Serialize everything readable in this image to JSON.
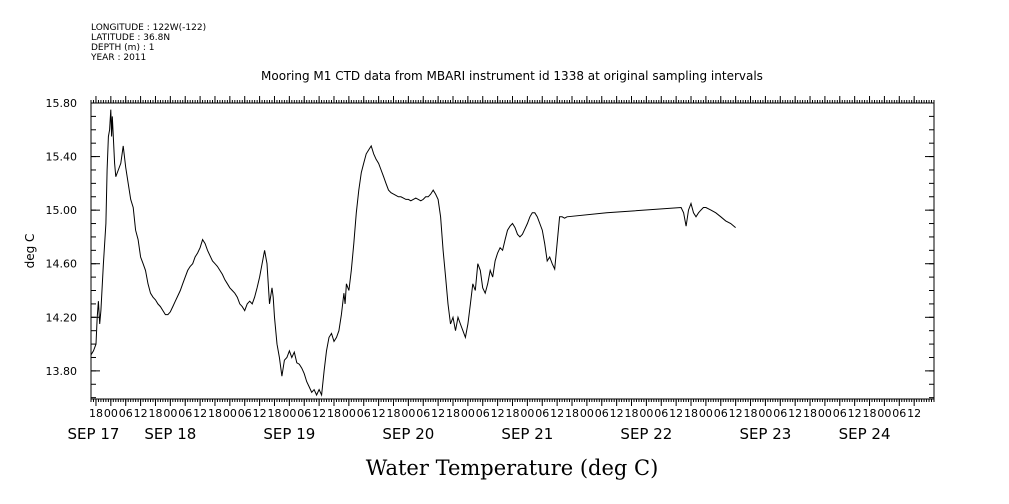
{
  "header_info": [
    "LONGITUDE : 122W(-122)",
    "LATITUDE : 36.8N",
    "DEPTH (m) : 1",
    "YEAR : 2011"
  ],
  "chart_data": {
    "type": "line",
    "title": "Mooring M1 CTD data from MBARI instrument id 1338 at original sampling intervals",
    "xlabel": "Water Temperature (deg C)",
    "ylabel": "deg C",
    "ylim": [
      13.59,
      15.8
    ],
    "y_ticks": [
      "13.80",
      "14.20",
      "14.60",
      "15.00",
      "15.40",
      "15.80"
    ],
    "y_tick_values": [
      13.8,
      14.2,
      14.6,
      15.0,
      15.4,
      15.8
    ],
    "x_range_hours": [
      -8,
      332
    ],
    "x_hour_ticks": [
      {
        "label": "18",
        "hour": -6
      },
      {
        "label": "00",
        "hour": 0
      },
      {
        "label": "06",
        "hour": 6
      },
      {
        "label": "12",
        "hour": 12
      },
      {
        "label": "18",
        "hour": 18
      },
      {
        "label": "00",
        "hour": 24
      },
      {
        "label": "06",
        "hour": 30
      },
      {
        "label": "12",
        "hour": 36
      },
      {
        "label": "18",
        "hour": 42
      },
      {
        "label": "00",
        "hour": 48
      },
      {
        "label": "06",
        "hour": 54
      },
      {
        "label": "12",
        "hour": 60
      },
      {
        "label": "18",
        "hour": 66
      },
      {
        "label": "00",
        "hour": 72
      },
      {
        "label": "06",
        "hour": 78
      },
      {
        "label": "12",
        "hour": 84
      },
      {
        "label": "18",
        "hour": 90
      },
      {
        "label": "00",
        "hour": 96
      },
      {
        "label": "06",
        "hour": 102
      },
      {
        "label": "12",
        "hour": 108
      },
      {
        "label": "18",
        "hour": 114
      },
      {
        "label": "00",
        "hour": 120
      },
      {
        "label": "06",
        "hour": 126
      },
      {
        "label": "12",
        "hour": 132
      },
      {
        "label": "18",
        "hour": 138
      },
      {
        "label": "00",
        "hour": 144
      },
      {
        "label": "06",
        "hour": 150
      },
      {
        "label": "12",
        "hour": 156
      },
      {
        "label": "18",
        "hour": 162
      },
      {
        "label": "00",
        "hour": 168
      },
      {
        "label": "06",
        "hour": 174
      },
      {
        "label": "12",
        "hour": 180
      },
      {
        "label": "18",
        "hour": 186
      },
      {
        "label": "00",
        "hour": 192
      },
      {
        "label": "06",
        "hour": 198
      },
      {
        "label": "12",
        "hour": 204
      },
      {
        "label": "18",
        "hour": 210
      },
      {
        "label": "00",
        "hour": 216
      },
      {
        "label": "06",
        "hour": 222
      },
      {
        "label": "12",
        "hour": 228
      },
      {
        "label": "18",
        "hour": 234
      },
      {
        "label": "00",
        "hour": 240
      },
      {
        "label": "06",
        "hour": 246
      },
      {
        "label": "12",
        "hour": 252
      },
      {
        "label": "18",
        "hour": 258
      },
      {
        "label": "00",
        "hour": 264
      },
      {
        "label": "06",
        "hour": 270
      },
      {
        "label": "12",
        "hour": 276
      },
      {
        "label": "18",
        "hour": 282
      },
      {
        "label": "00",
        "hour": 288
      },
      {
        "label": "06",
        "hour": 294
      },
      {
        "label": "12",
        "hour": 300
      },
      {
        "label": "18",
        "hour": 306
      },
      {
        "label": "00",
        "hour": 312
      },
      {
        "label": "06",
        "hour": 318
      },
      {
        "label": "12",
        "hour": 324
      }
    ],
    "x_date_labels": [
      {
        "label": "SEP 17",
        "hour": -7
      },
      {
        "label": "SEP 18",
        "hour": 24
      },
      {
        "label": "SEP 19",
        "hour": 72
      },
      {
        "label": "SEP 20",
        "hour": 120
      },
      {
        "label": "SEP 21",
        "hour": 168
      },
      {
        "label": "SEP 22",
        "hour": 216
      },
      {
        "label": "SEP 23",
        "hour": 264
      },
      {
        "label": "SEP 24",
        "hour": 304
      }
    ],
    "series": [
      {
        "color": "#000000",
        "points": [
          [
            -8,
            13.92
          ],
          [
            -7,
            13.95
          ],
          [
            -6,
            14.0
          ],
          [
            -5.5,
            14.2
          ],
          [
            -5,
            14.32
          ],
          [
            -4.5,
            14.15
          ],
          [
            -4,
            14.25
          ],
          [
            -3,
            14.6
          ],
          [
            -2,
            14.9
          ],
          [
            -1.5,
            15.3
          ],
          [
            -1,
            15.55
          ],
          [
            -0.5,
            15.6
          ],
          [
            0,
            15.75
          ],
          [
            0.3,
            15.55
          ],
          [
            0.6,
            15.7
          ],
          [
            1,
            15.55
          ],
          [
            1.5,
            15.35
          ],
          [
            2,
            15.25
          ],
          [
            3,
            15.3
          ],
          [
            4,
            15.35
          ],
          [
            5,
            15.48
          ],
          [
            6,
            15.32
          ],
          [
            7,
            15.2
          ],
          [
            8,
            15.08
          ],
          [
            9,
            15.02
          ],
          [
            10,
            14.85
          ],
          [
            11,
            14.78
          ],
          [
            12,
            14.65
          ],
          [
            13,
            14.6
          ],
          [
            14,
            14.55
          ],
          [
            15,
            14.45
          ],
          [
            16,
            14.38
          ],
          [
            17,
            14.35
          ],
          [
            18,
            14.33
          ],
          [
            19,
            14.3
          ],
          [
            20,
            14.28
          ],
          [
            21,
            14.25
          ],
          [
            22,
            14.22
          ],
          [
            23,
            14.22
          ],
          [
            24,
            14.24
          ],
          [
            25,
            14.28
          ],
          [
            26,
            14.32
          ],
          [
            27,
            14.36
          ],
          [
            28,
            14.4
          ],
          [
            29,
            14.45
          ],
          [
            30,
            14.5
          ],
          [
            31,
            14.55
          ],
          [
            32,
            14.58
          ],
          [
            33,
            14.6
          ],
          [
            34,
            14.65
          ],
          [
            35,
            14.68
          ],
          [
            36,
            14.72
          ],
          [
            37,
            14.78
          ],
          [
            38,
            14.75
          ],
          [
            39,
            14.7
          ],
          [
            40,
            14.66
          ],
          [
            41,
            14.62
          ],
          [
            42,
            14.6
          ],
          [
            43,
            14.58
          ],
          [
            44,
            14.55
          ],
          [
            45,
            14.52
          ],
          [
            46,
            14.48
          ],
          [
            47,
            14.45
          ],
          [
            48,
            14.42
          ],
          [
            49,
            14.4
          ],
          [
            50,
            14.38
          ],
          [
            51,
            14.35
          ],
          [
            52,
            14.3
          ],
          [
            53,
            14.28
          ],
          [
            54,
            14.25
          ],
          [
            55,
            14.3
          ],
          [
            56,
            14.32
          ],
          [
            57,
            14.3
          ],
          [
            58,
            14.35
          ],
          [
            59,
            14.42
          ],
          [
            60,
            14.5
          ],
          [
            61,
            14.6
          ],
          [
            62,
            14.7
          ],
          [
            63,
            14.6
          ],
          [
            64,
            14.3
          ],
          [
            65,
            14.42
          ],
          [
            65.5,
            14.35
          ],
          [
            66,
            14.2
          ],
          [
            67,
            14.0
          ],
          [
            68,
            13.9
          ],
          [
            69,
            13.76
          ],
          [
            70,
            13.88
          ],
          [
            71,
            13.9
          ],
          [
            72,
            13.95
          ],
          [
            73,
            13.9
          ],
          [
            74,
            13.94
          ],
          [
            75,
            13.86
          ],
          [
            76,
            13.85
          ],
          [
            77,
            13.82
          ],
          [
            78,
            13.78
          ],
          [
            79,
            13.72
          ],
          [
            80,
            13.68
          ],
          [
            81,
            13.64
          ],
          [
            82,
            13.66
          ],
          [
            83,
            13.62
          ],
          [
            84,
            13.66
          ],
          [
            85,
            13.62
          ],
          [
            86,
            13.8
          ],
          [
            87,
            13.95
          ],
          [
            88,
            14.05
          ],
          [
            89,
            14.08
          ],
          [
            90,
            14.02
          ],
          [
            91,
            14.05
          ],
          [
            92,
            14.1
          ],
          [
            93,
            14.22
          ],
          [
            94,
            14.38
          ],
          [
            94.5,
            14.3
          ],
          [
            95,
            14.45
          ],
          [
            96,
            14.4
          ],
          [
            97,
            14.55
          ],
          [
            98,
            14.75
          ],
          [
            99,
            14.98
          ],
          [
            100,
            15.15
          ],
          [
            101,
            15.28
          ],
          [
            102,
            15.35
          ],
          [
            103,
            15.42
          ],
          [
            104,
            15.45
          ],
          [
            105,
            15.48
          ],
          [
            106,
            15.42
          ],
          [
            107,
            15.38
          ],
          [
            108,
            15.35
          ],
          [
            109,
            15.3
          ],
          [
            110,
            15.25
          ],
          [
            111,
            15.2
          ],
          [
            112,
            15.15
          ],
          [
            113,
            15.13
          ],
          [
            114,
            15.12
          ],
          [
            115,
            15.11
          ],
          [
            116,
            15.1
          ],
          [
            117,
            15.1
          ],
          [
            118,
            15.09
          ],
          [
            119,
            15.08
          ],
          [
            120,
            15.08
          ],
          [
            121,
            15.07
          ],
          [
            122,
            15.08
          ],
          [
            123,
            15.09
          ],
          [
            124,
            15.08
          ],
          [
            125,
            15.07
          ],
          [
            126,
            15.08
          ],
          [
            127,
            15.1
          ],
          [
            128,
            15.1
          ],
          [
            129,
            15.12
          ],
          [
            130,
            15.15
          ],
          [
            131,
            15.12
          ],
          [
            132,
            15.08
          ],
          [
            133,
            14.95
          ],
          [
            134,
            14.7
          ],
          [
            135,
            14.5
          ],
          [
            136,
            14.3
          ],
          [
            137,
            14.15
          ],
          [
            138,
            14.2
          ],
          [
            139,
            14.1
          ],
          [
            140,
            14.2
          ],
          [
            141,
            14.15
          ],
          [
            142,
            14.1
          ],
          [
            143,
            14.05
          ],
          [
            144,
            14.15
          ],
          [
            145,
            14.3
          ],
          [
            146,
            14.45
          ],
          [
            147,
            14.4
          ],
          [
            148,
            14.6
          ],
          [
            149,
            14.55
          ],
          [
            150,
            14.42
          ],
          [
            151,
            14.38
          ],
          [
            152,
            14.45
          ],
          [
            153,
            14.55
          ],
          [
            154,
            14.5
          ],
          [
            155,
            14.62
          ],
          [
            156,
            14.68
          ],
          [
            157,
            14.72
          ],
          [
            158,
            14.7
          ],
          [
            159,
            14.78
          ],
          [
            160,
            14.85
          ],
          [
            161,
            14.88
          ],
          [
            162,
            14.9
          ],
          [
            163,
            14.87
          ],
          [
            164,
            14.82
          ],
          [
            165,
            14.8
          ],
          [
            166,
            14.82
          ],
          [
            167,
            14.86
          ],
          [
            168,
            14.9
          ],
          [
            169,
            14.95
          ],
          [
            170,
            14.98
          ],
          [
            171,
            14.98
          ],
          [
            172,
            14.95
          ],
          [
            173,
            14.9
          ],
          [
            174,
            14.85
          ],
          [
            175,
            14.75
          ],
          [
            176,
            14.62
          ],
          [
            177,
            14.65
          ],
          [
            178,
            14.6
          ],
          [
            179,
            14.56
          ],
          [
            180,
            14.75
          ],
          [
            181,
            14.95
          ],
          [
            182,
            14.95
          ],
          [
            183,
            14.94
          ],
          [
            184,
            14.95
          ],
          [
            200,
            14.98
          ],
          [
            230,
            15.02
          ],
          [
            231,
            14.98
          ],
          [
            232,
            14.88
          ],
          [
            233,
            15.0
          ],
          [
            234,
            15.05
          ],
          [
            235,
            14.98
          ],
          [
            236,
            14.95
          ],
          [
            237,
            14.98
          ],
          [
            238,
            15.0
          ],
          [
            239,
            15.02
          ],
          [
            240,
            15.02
          ],
          [
            242,
            15.0
          ],
          [
            244,
            14.98
          ],
          [
            246,
            14.95
          ],
          [
            248,
            14.92
          ],
          [
            250,
            14.9
          ],
          [
            252,
            14.87
          ]
        ]
      }
    ]
  }
}
